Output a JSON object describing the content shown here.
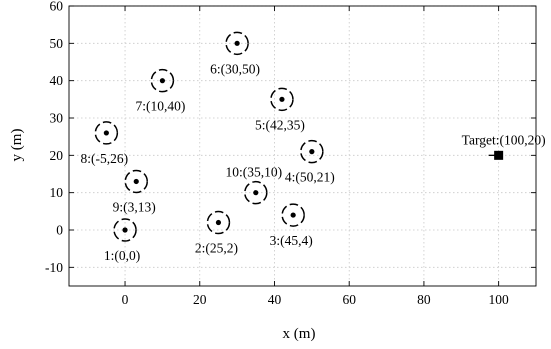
{
  "chart_data": {
    "type": "scatter",
    "xlabel": "x (m)",
    "ylabel": "y (m)",
    "xlim": [
      -15,
      110
    ],
    "ylim": [
      -15,
      60
    ],
    "xticks": [
      0,
      20,
      40,
      60,
      80,
      100
    ],
    "yticks": [
      -10,
      0,
      10,
      20,
      30,
      40,
      50,
      60
    ],
    "grid": true,
    "series": [
      {
        "marker": "dashed-circle-with-dot",
        "points": [
          {
            "x": 0,
            "y": 0,
            "label": "1:(0,0)",
            "label_pos": "below-left"
          },
          {
            "x": 25,
            "y": 2,
            "label": "2:(25,2)",
            "label_pos": "below"
          },
          {
            "x": 45,
            "y": 4,
            "label": "3:(45,4)",
            "label_pos": "below"
          },
          {
            "x": 50,
            "y": 21,
            "label": "4:(50,21)",
            "label_pos": "below"
          },
          {
            "x": 42,
            "y": 35,
            "label": "5:(42,35)",
            "label_pos": "below"
          },
          {
            "x": 30,
            "y": 50,
            "label": "6:(30,50)",
            "label_pos": "below"
          },
          {
            "x": 10,
            "y": 40,
            "label": "7:(10,40)",
            "label_pos": "below"
          },
          {
            "x": -5,
            "y": 26,
            "label": "8:(-5,26)",
            "label_pos": "below"
          },
          {
            "x": 3,
            "y": 13,
            "label": "9:(3,13)",
            "label_pos": "below"
          },
          {
            "x": 35,
            "y": 10,
            "label": "10:(35,10)",
            "label_pos": "above"
          }
        ]
      }
    ],
    "target": {
      "x": 100,
      "y": 20,
      "label": "Target:(100,20)",
      "marker": "filled-square"
    }
  }
}
